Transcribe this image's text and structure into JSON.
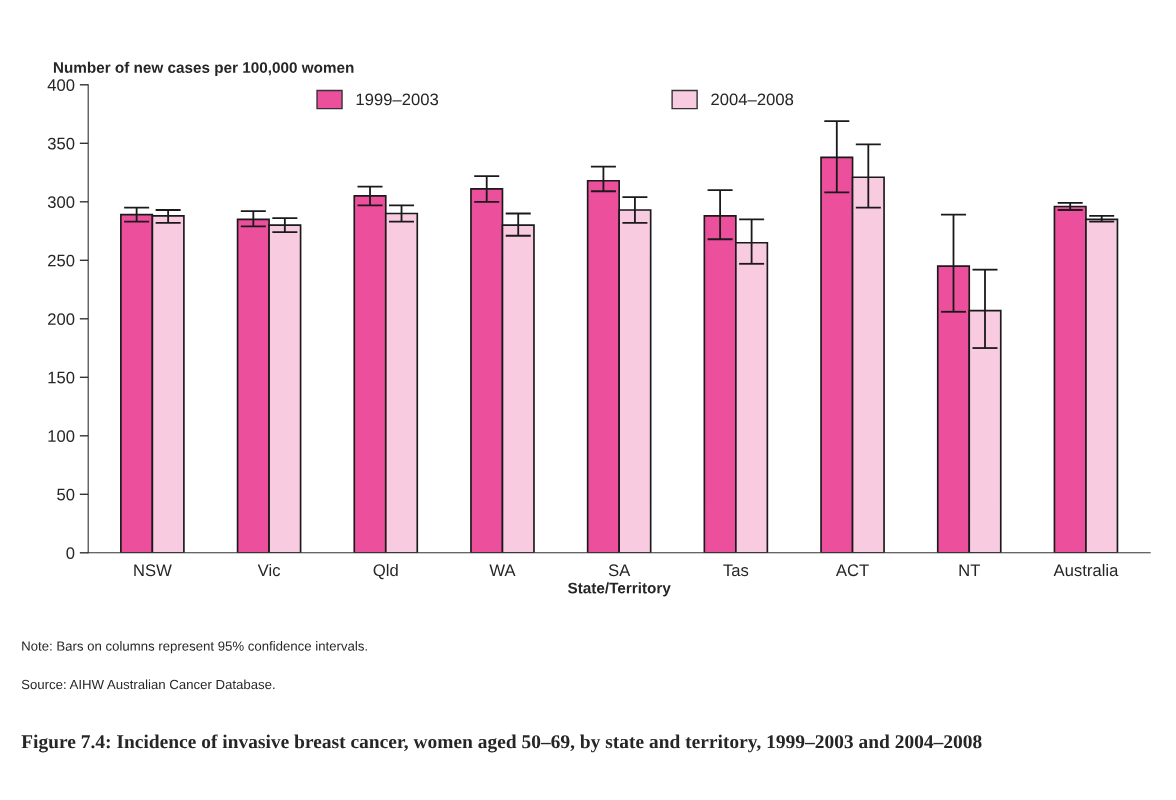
{
  "chart_data": {
    "type": "bar",
    "title": "Figure 7.4: Incidence of invasive breast cancer, women aged 50–69, by state and territory, 1999–2003 and 2004–2008",
    "ylabel": "Number of new cases per 100,000 women",
    "xlabel": "State/Territory",
    "categories": [
      "NSW",
      "Vic",
      "Qld",
      "WA",
      "SA",
      "Tas",
      "ACT",
      "NT",
      "Australia"
    ],
    "series": [
      {
        "name": "1999–2003",
        "color": "#ec4f9b",
        "values": [
          289,
          285,
          305,
          311,
          318,
          288,
          338,
          245,
          296
        ],
        "errors": [
          [
            283,
            295
          ],
          [
            279,
            292
          ],
          [
            297,
            313
          ],
          [
            300,
            322
          ],
          [
            309,
            330
          ],
          [
            268,
            310
          ],
          [
            308,
            369
          ],
          [
            206,
            289
          ],
          [
            293,
            299
          ]
        ]
      },
      {
        "name": "2004–2008",
        "color": "#f8cbe0",
        "values": [
          288,
          280,
          290,
          280,
          293,
          265,
          321,
          207,
          285
        ],
        "errors": [
          [
            282,
            293
          ],
          [
            274,
            286
          ],
          [
            283,
            297
          ],
          [
            271,
            290
          ],
          [
            282,
            304
          ],
          [
            247,
            285
          ],
          [
            295,
            349
          ],
          [
            175,
            242
          ],
          [
            283,
            288
          ]
        ]
      }
    ],
    "ylim": [
      0,
      400
    ],
    "yticks": [
      0,
      50,
      100,
      150,
      200,
      250,
      300,
      350,
      400
    ],
    "grid": false,
    "legend": "top",
    "annotations": [
      "Note: Bars on columns represent 95% confidence intervals.",
      "Source: AIHW Australian Cancer Database."
    ]
  }
}
